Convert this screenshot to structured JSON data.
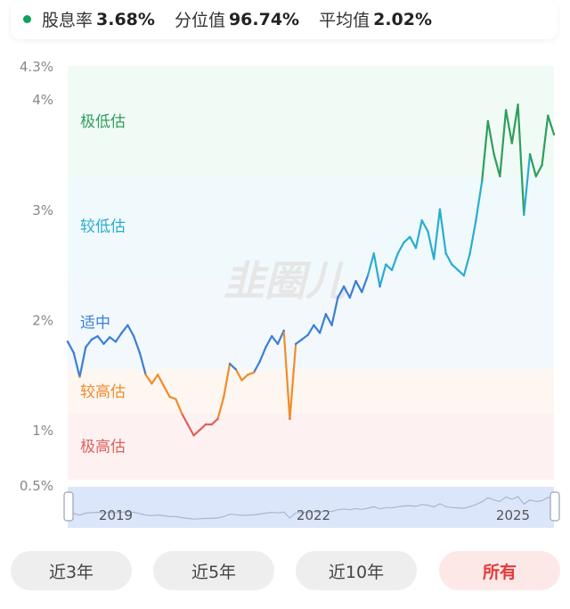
{
  "summary": {
    "dividend_label": "股息率",
    "dividend_value": "3.68%",
    "percentile_label": "分位值",
    "percentile_value": "96.74%",
    "average_label": "平均值",
    "average_value": "2.02%"
  },
  "watermark": "韭圈儿",
  "chart_data": {
    "type": "line",
    "title": "",
    "xlabel": "",
    "ylabel": "",
    "y_tick_labels": [
      "4.3%",
      "4%",
      "3%",
      "2%",
      "1%",
      "0.5%"
    ],
    "y_ticks": [
      4.3,
      4,
      3,
      2,
      1,
      0.5
    ],
    "ylim": [
      0.5,
      4.3
    ],
    "x_range": [
      "2018-09",
      "2025-06"
    ],
    "grid": false,
    "zones": [
      {
        "label": "极低估",
        "from": 3.3,
        "to": 4.3,
        "color": "#2e9e5b",
        "fill": "#f1fbf6"
      },
      {
        "label": "较低估",
        "from": 2.4,
        "to": 3.3,
        "color": "#2aaccf",
        "fill": "#f0fafd"
      },
      {
        "label": "适中",
        "from": 1.55,
        "to": 2.4,
        "color": "#3b7fd4",
        "fill": "#f3f8fd"
      },
      {
        "label": "较高估",
        "from": 1.15,
        "to": 1.55,
        "color": "#f08c2a",
        "fill": "#fdf6f1"
      },
      {
        "label": "极高估",
        "from": 0.55,
        "to": 1.15,
        "color": "#e0605c",
        "fill": "#fdf1f1"
      }
    ],
    "series": [
      {
        "x": [
          "2018-09",
          "2018-10",
          "2018-11",
          "2018-12",
          "2019-01",
          "2019-02",
          "2019-03",
          "2019-04",
          "2019-05",
          "2019-06",
          "2019-07",
          "2019-08",
          "2019-09",
          "2019-10",
          "2019-11",
          "2019-12",
          "2020-01",
          "2020-02",
          "2020-03",
          "2020-04",
          "2020-05",
          "2020-06",
          "2020-07",
          "2020-08",
          "2020-09",
          "2020-10",
          "2020-11",
          "2020-12",
          "2021-01",
          "2021-02",
          "2021-03",
          "2021-04",
          "2021-05",
          "2021-06",
          "2021-07",
          "2021-08",
          "2021-09",
          "2021-10",
          "2021-11",
          "2021-12",
          "2022-01",
          "2022-02",
          "2022-03",
          "2022-04",
          "2022-05",
          "2022-06",
          "2022-07",
          "2022-08",
          "2022-09",
          "2022-10",
          "2022-11",
          "2022-12",
          "2023-01",
          "2023-02",
          "2023-03",
          "2023-04",
          "2023-05",
          "2023-06",
          "2023-07",
          "2023-08",
          "2023-09",
          "2023-10",
          "2023-11",
          "2023-12",
          "2024-01",
          "2024-02",
          "2024-03",
          "2024-04",
          "2024-05",
          "2024-06",
          "2024-07",
          "2024-08",
          "2024-09",
          "2024-10",
          "2024-11",
          "2024-12",
          "2025-01",
          "2025-02",
          "2025-03",
          "2025-04",
          "2025-05",
          "2025-06"
        ],
        "values": [
          1.8,
          1.7,
          1.48,
          1.75,
          1.82,
          1.85,
          1.78,
          1.84,
          1.8,
          1.88,
          1.95,
          1.85,
          1.7,
          1.5,
          1.42,
          1.5,
          1.4,
          1.3,
          1.28,
          1.15,
          1.05,
          0.95,
          1.0,
          1.05,
          1.05,
          1.1,
          1.3,
          1.6,
          1.55,
          1.45,
          1.5,
          1.52,
          1.62,
          1.75,
          1.85,
          1.78,
          1.9,
          1.1,
          1.78,
          1.82,
          1.86,
          1.95,
          1.88,
          2.05,
          1.95,
          2.2,
          2.3,
          2.2,
          2.35,
          2.25,
          2.4,
          2.6,
          2.3,
          2.5,
          2.45,
          2.6,
          2.7,
          2.75,
          2.65,
          2.9,
          2.8,
          2.55,
          3.0,
          2.6,
          2.5,
          2.45,
          2.4,
          2.6,
          2.9,
          3.25,
          3.8,
          3.5,
          3.3,
          3.9,
          3.6,
          3.95,
          2.95,
          3.5,
          3.3,
          3.4,
          3.85,
          3.68
        ]
      }
    ],
    "range_selector": {
      "labels": [
        "2019",
        "2022",
        "2025"
      ]
    }
  },
  "range_buttons": [
    {
      "label": "近3年",
      "active": false
    },
    {
      "label": "近5年",
      "active": false
    },
    {
      "label": "近10年",
      "active": false
    },
    {
      "label": "所有",
      "active": true
    }
  ]
}
